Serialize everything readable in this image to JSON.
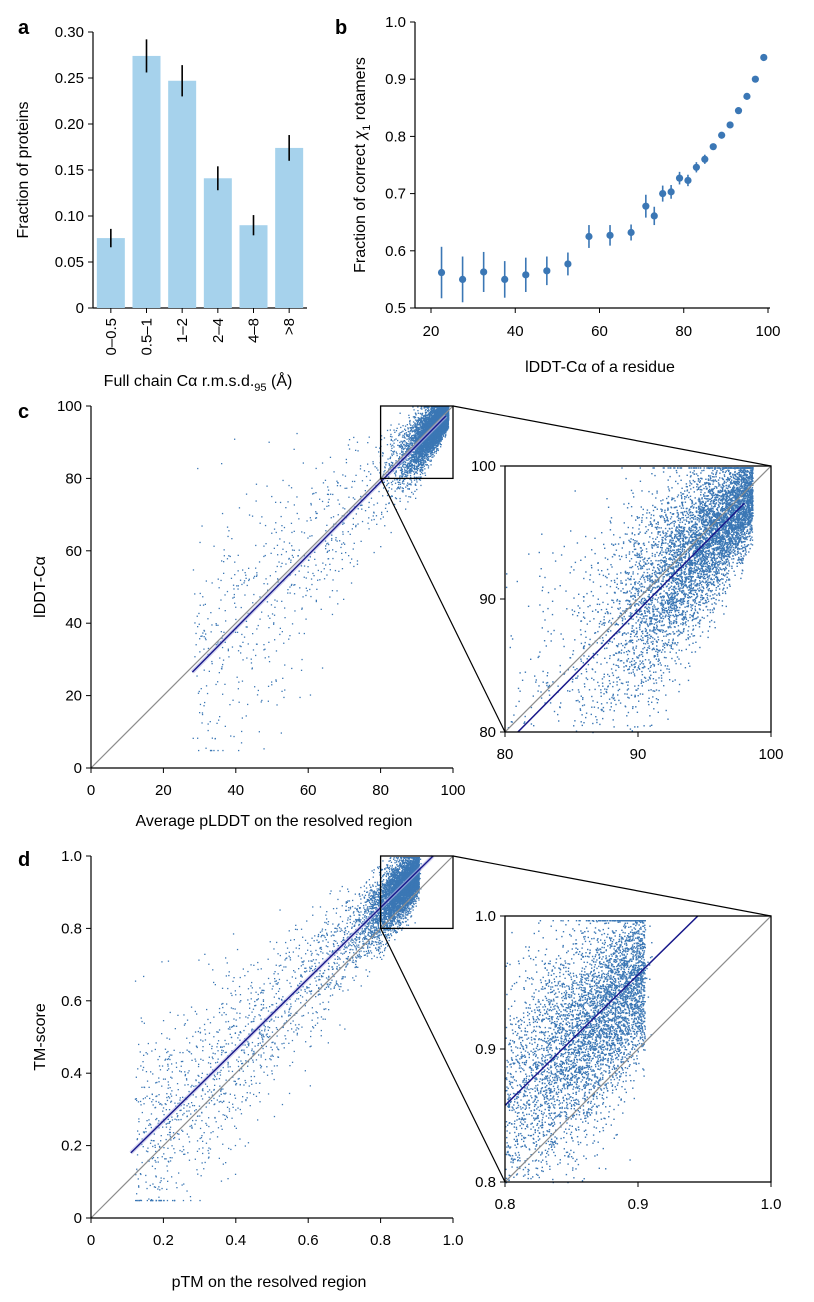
{
  "colors": {
    "bar": "#a6d2ec",
    "point": "#3b77b5",
    "fit": "#18188a",
    "identity": "#8c8c8c",
    "frame": "#000000"
  },
  "chart_data": [
    {
      "panel": "a",
      "type": "bar",
      "categories": [
        "0–0.5",
        "0.5–1",
        "1–2",
        "2–4",
        "4–8",
        ">8"
      ],
      "values": [
        0.076,
        0.274,
        0.247,
        0.141,
        0.09,
        0.174
      ],
      "errors": [
        0.01,
        0.018,
        0.017,
        0.013,
        0.011,
        0.014
      ],
      "xlabel_main": "Full chain Cα r.m.s.d.",
      "xlabel_sub": "95",
      "xlabel_end": " (Å)",
      "ylabel": "Fraction of proteins",
      "ylim": [
        0,
        0.3
      ],
      "yticks": [
        "0",
        "0.05",
        "0.10",
        "0.15",
        "0.20",
        "0.25",
        "0.30"
      ]
    },
    {
      "panel": "b",
      "type": "scatter",
      "x": [
        22.5,
        27.5,
        32.5,
        37.5,
        42.5,
        47.5,
        52.5,
        57.5,
        62.5,
        67.5,
        71,
        73,
        75,
        77,
        79,
        81,
        83,
        85,
        87,
        89,
        91,
        93,
        95,
        97,
        99
      ],
      "y": [
        0.562,
        0.55,
        0.563,
        0.55,
        0.558,
        0.565,
        0.577,
        0.625,
        0.627,
        0.632,
        0.678,
        0.661,
        0.7,
        0.703,
        0.727,
        0.723,
        0.746,
        0.76,
        0.782,
        0.802,
        0.82,
        0.845,
        0.87,
        0.9,
        0.938
      ],
      "err": [
        0.045,
        0.04,
        0.035,
        0.032,
        0.03,
        0.025,
        0.02,
        0.02,
        0.018,
        0.014,
        0.02,
        0.016,
        0.014,
        0.012,
        0.011,
        0.01,
        0.009,
        0.008,
        0.005,
        0.004,
        0.003,
        0.003,
        0.003,
        0.003,
        0.003
      ],
      "xlabel": "lDDT-Cα of a residue",
      "ylabel_main": "Fraction of correct ",
      "ylabel_chi": "χ",
      "ylabel_sub": "1",
      "ylabel_end": " rotamers",
      "xlim": [
        20,
        100
      ],
      "ylim": [
        0.5,
        1.0
      ],
      "xticks": [
        "20",
        "40",
        "60",
        "80",
        "100"
      ],
      "yticks": [
        "0.5",
        "0.6",
        "0.7",
        "0.8",
        "0.9",
        "1.0"
      ]
    },
    {
      "panel": "c",
      "type": "scatter",
      "xlabel": "Average pLDDT on the resolved region",
      "ylabel": "lDDT-Cα",
      "xlim": [
        0,
        100
      ],
      "ylim": [
        0,
        100
      ],
      "xticks": [
        "0",
        "20",
        "40",
        "60",
        "80",
        "100"
      ],
      "yticks": [
        "0",
        "20",
        "40",
        "60",
        "80",
        "100"
      ],
      "fit": {
        "x": [
          28,
          98
        ],
        "y": [
          26.5,
          97.2
        ]
      },
      "identity": true,
      "inset": {
        "xlim": [
          80,
          100
        ],
        "ylim": [
          80,
          100
        ],
        "xticks": [
          "80",
          "90",
          "100"
        ],
        "yticks": [
          "80",
          "90",
          "100"
        ]
      }
    },
    {
      "panel": "d",
      "type": "scatter",
      "xlabel": "pTM on the resolved region",
      "ylabel": "TM-score",
      "xlim": [
        0,
        1.0
      ],
      "ylim": [
        0,
        1.0
      ],
      "xticks": [
        "0",
        "0.2",
        "0.4",
        "0.6",
        "0.8",
        "1.0"
      ],
      "yticks": [
        "0",
        "0.2",
        "0.4",
        "0.6",
        "0.8",
        "1.0"
      ],
      "fit": {
        "x": [
          0.11,
          0.945
        ],
        "y": [
          0.18,
          1.0
        ]
      },
      "identity": true,
      "inset": {
        "xlim": [
          0.8,
          1.0
        ],
        "ylim": [
          0.8,
          1.0
        ],
        "xticks": [
          "0.8",
          "0.9",
          "1.0"
        ],
        "yticks": [
          "0.8",
          "0.9",
          "1.0"
        ]
      }
    }
  ]
}
